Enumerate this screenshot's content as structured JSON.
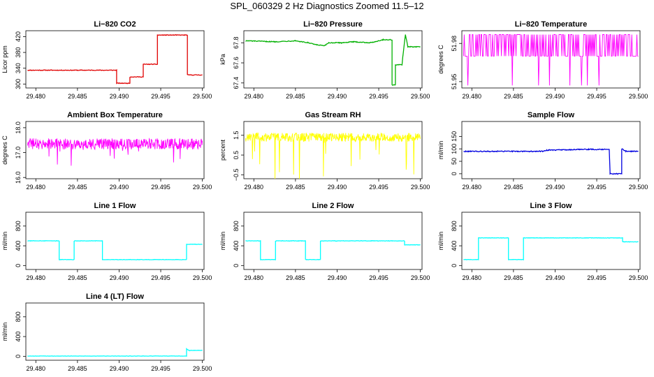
{
  "page": {
    "title": "SPL_060329  2 Hz Diagnostics Zoomed 11.5–12"
  },
  "chart_data": [
    {
      "type": "line",
      "title": "Li−820 CO2",
      "ylabel": "Licor ppm",
      "color": "#e00000",
      "noise": 0.8,
      "xlim": [
        29.4788,
        29.5002
      ],
      "ylim": [
        290,
        435
      ],
      "xticks": [
        "29.480",
        "29.485",
        "29.490",
        "29.495",
        "29.500"
      ],
      "yticks": [
        "300",
        "340",
        "380",
        "420"
      ],
      "series": [
        {
          "x": [
            29.479,
            29.4897,
            29.4897,
            29.4913,
            29.4913,
            29.4929,
            29.4929,
            29.4946,
            29.4946,
            29.4982,
            29.4982,
            29.5
          ],
          "y": [
            335,
            335,
            302,
            302,
            318,
            318,
            350,
            350,
            424,
            424,
            323,
            323
          ]
        }
      ]
    },
    {
      "type": "line",
      "title": "Li−820 Pressure",
      "ylabel": "kPa",
      "color": "#00b000",
      "noise": 0.004,
      "xlim": [
        29.4788,
        29.5002
      ],
      "ylim": [
        67.35,
        67.92
      ],
      "xticks": [
        "29.480",
        "29.485",
        "29.490",
        "29.495",
        "29.500"
      ],
      "yticks": [
        "67.4",
        "67.6",
        "67.8"
      ],
      "series": [
        {
          "x": [
            29.479,
            29.4825,
            29.485,
            29.4865,
            29.4875,
            29.4885,
            29.489,
            29.4905,
            29.492,
            29.494,
            29.4955,
            29.4966,
            29.4966,
            29.497,
            29.497,
            29.4978,
            29.4979,
            29.4982,
            29.4985,
            29.5
          ],
          "y": [
            67.82,
            67.81,
            67.82,
            67.8,
            67.78,
            67.77,
            67.8,
            67.8,
            67.81,
            67.8,
            67.83,
            67.83,
            67.38,
            67.38,
            67.58,
            67.58,
            67.67,
            67.88,
            67.76,
            67.76
          ]
        }
      ]
    },
    {
      "type": "line",
      "title": "Li−820 Temperature",
      "ylabel": "degrees C",
      "color": "#ff00ff",
      "kind": "binary",
      "ylim": [
        51.945,
        51.99
      ],
      "binary": {
        "base": 51.97,
        "high": 51.987,
        "low": 51.947,
        "seed": 13,
        "density": 0.5
      },
      "xlim": [
        29.4788,
        29.5002
      ],
      "xticks": [
        "29.480",
        "29.485",
        "29.490",
        "29.495",
        "29.500"
      ],
      "yticks": [
        "51.95",
        "51.98"
      ],
      "series": [
        {
          "x": [
            29.479,
            29.5
          ],
          "y": [
            51.97,
            51.97
          ]
        }
      ]
    },
    {
      "type": "line",
      "title": "Ambient Box Temperature",
      "ylabel": "degrees C",
      "color": "#ff00ff",
      "kind": "noise",
      "noise": 0.22,
      "spikes": 0.55,
      "xlim": [
        29.4788,
        29.5002
      ],
      "ylim": [
        15.95,
        18.25
      ],
      "xticks": [
        "29.480",
        "29.485",
        "29.490",
        "29.495",
        "29.500"
      ],
      "yticks": [
        "16.0",
        "17.0",
        "18.0"
      ],
      "series": [
        {
          "x": [
            29.479,
            29.5
          ],
          "y": [
            17.35,
            17.35
          ]
        }
      ]
    },
    {
      "type": "line",
      "title": "Gas Stream RH",
      "ylabel": "percent",
      "color": "#ffff00",
      "kind": "noise",
      "noise": 0.22,
      "spikes": 1.4,
      "xlim": [
        29.4788,
        29.5002
      ],
      "ylim": [
        -0.7,
        2.2
      ],
      "xticks": [
        "29.480",
        "29.485",
        "29.490",
        "29.495",
        "29.500"
      ],
      "yticks": [
        "−0.5",
        "0.5",
        "1.5"
      ],
      "series": [
        {
          "x": [
            29.479,
            29.5
          ],
          "y": [
            1.4,
            1.4
          ]
        }
      ]
    },
    {
      "type": "line",
      "title": "Sample Flow",
      "ylabel": "ml/min",
      "color": "#0000e0",
      "noise": 2,
      "xlim": [
        29.4788,
        29.5002
      ],
      "ylim": [
        -20,
        210
      ],
      "xticks": [
        "29.480",
        "29.485",
        "29.490",
        "29.495",
        "29.500"
      ],
      "yticks": [
        "0",
        "50",
        "100",
        "150"
      ],
      "series": [
        {
          "x": [
            29.479,
            29.4885,
            29.489,
            29.494,
            29.4965,
            29.4966,
            29.4966,
            29.498,
            29.498,
            29.4985,
            29.5
          ],
          "y": [
            90,
            90,
            95,
            98,
            98,
            10,
            0,
            0,
            100,
            90,
            90
          ]
        }
      ]
    },
    {
      "type": "line",
      "title": "Line 1 Flow",
      "ylabel": "ml/min",
      "color": "#00ffff",
      "noise": 4,
      "xlim": [
        29.4788,
        29.5002
      ],
      "ylim": [
        -80,
        1080
      ],
      "xticks": [
        "29.480",
        "29.485",
        "29.490",
        "29.495",
        "29.500"
      ],
      "yticks": [
        "0",
        "400",
        "800"
      ],
      "series": [
        {
          "x": [
            29.479,
            29.4828,
            29.4828,
            29.4846,
            29.4846,
            29.488,
            29.488,
            29.4981,
            29.4981,
            29.5
          ],
          "y": [
            500,
            500,
            120,
            120,
            500,
            500,
            120,
            120,
            430,
            430
          ]
        }
      ]
    },
    {
      "type": "line",
      "title": "Line 2 Flow",
      "ylabel": "ml/min",
      "color": "#00ffff",
      "noise": 4,
      "xlim": [
        29.4788,
        29.5002
      ],
      "ylim": [
        -80,
        1080
      ],
      "xticks": [
        "29.480",
        "29.485",
        "29.490",
        "29.495",
        "29.500"
      ],
      "yticks": [
        "0",
        "400",
        "800"
      ],
      "series": [
        {
          "x": [
            29.479,
            29.4808,
            29.4808,
            29.4826,
            29.4826,
            29.4862,
            29.4862,
            29.488,
            29.488,
            29.4981,
            29.4981,
            29.5
          ],
          "y": [
            500,
            500,
            120,
            120,
            500,
            500,
            120,
            120,
            500,
            500,
            420,
            420
          ]
        }
      ]
    },
    {
      "type": "line",
      "title": "Line 3 Flow",
      "ylabel": "ml/min",
      "color": "#00ffff",
      "noise": 4,
      "xlim": [
        29.4788,
        29.5002
      ],
      "ylim": [
        -80,
        1080
      ],
      "xticks": [
        "29.480",
        "29.485",
        "29.490",
        "29.495",
        "29.500"
      ],
      "yticks": [
        "0",
        "400",
        "800"
      ],
      "series": [
        {
          "x": [
            29.479,
            29.4808,
            29.4808,
            29.4844,
            29.4844,
            29.4862,
            29.4862,
            29.4981,
            29.4981,
            29.5
          ],
          "y": [
            120,
            120,
            560,
            560,
            120,
            120,
            560,
            560,
            480,
            480
          ]
        }
      ]
    },
    {
      "type": "line",
      "title": "Line 4 (LT) Flow",
      "ylabel": "ml/min",
      "color": "#00ffff",
      "noise": 3,
      "xlim": [
        29.4788,
        29.5002
      ],
      "ylim": [
        -80,
        1080
      ],
      "xticks": [
        "29.480",
        "29.485",
        "29.490",
        "29.495",
        "29.500"
      ],
      "yticks": [
        "0",
        "400",
        "800"
      ],
      "series": [
        {
          "x": [
            29.479,
            29.4981,
            29.4981,
            29.4984,
            29.5
          ],
          "y": [
            5,
            5,
            150,
            120,
            120
          ]
        }
      ]
    }
  ]
}
